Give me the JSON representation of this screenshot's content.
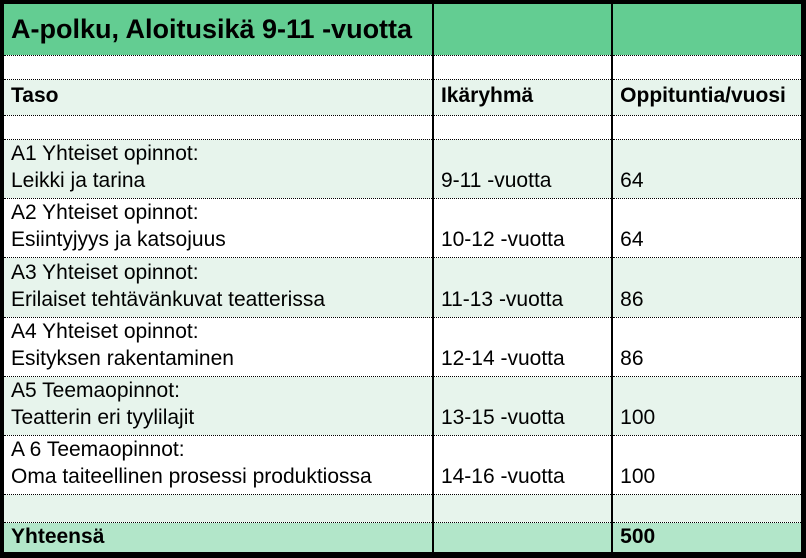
{
  "title": "A-polku, Aloitusikä 9-11 -vuotta",
  "headers": {
    "taso": "Taso",
    "ikaryhma": "Ikäryhmä",
    "oppituntia": "Oppituntia/vuosi"
  },
  "rows": [
    {
      "line1": "A1 Yhteiset opinnot:",
      "line2": "Leikki ja tarina",
      "age": "9-11 -vuotta",
      "hours": "64"
    },
    {
      "line1": "A2 Yhteiset opinnot:",
      "line2": "Esiintyjyys ja katsojuus",
      "age": "10-12 -vuotta",
      "hours": "64"
    },
    {
      "line1": "A3 Yhteiset opinnot:",
      "line2": "Erilaiset tehtävänkuvat teatterissa",
      "age": "11-13 -vuotta",
      "hours": "86"
    },
    {
      "line1": "A4 Yhteiset opinnot:",
      "line2": "Esityksen rakentaminen",
      "age": "12-14 -vuotta",
      "hours": "86"
    },
    {
      "line1": "A5 Teemaopinnot:",
      "line2": "Teatterin eri tyylilajit",
      "age": "13-15 -vuotta",
      "hours": "100"
    },
    {
      "line1": "A 6 Teemaopinnot:",
      "line2": "Oma taiteellinen prosessi produktiossa",
      "age": "14-16 -vuotta",
      "hours": "100"
    }
  ],
  "total": {
    "label": "Yhteensä",
    "value": "500"
  },
  "colors": {
    "title_green": "#63cd92",
    "pale_green": "#e7f4ec",
    "total_green": "#b2e6c9",
    "border_black": "#000000"
  }
}
